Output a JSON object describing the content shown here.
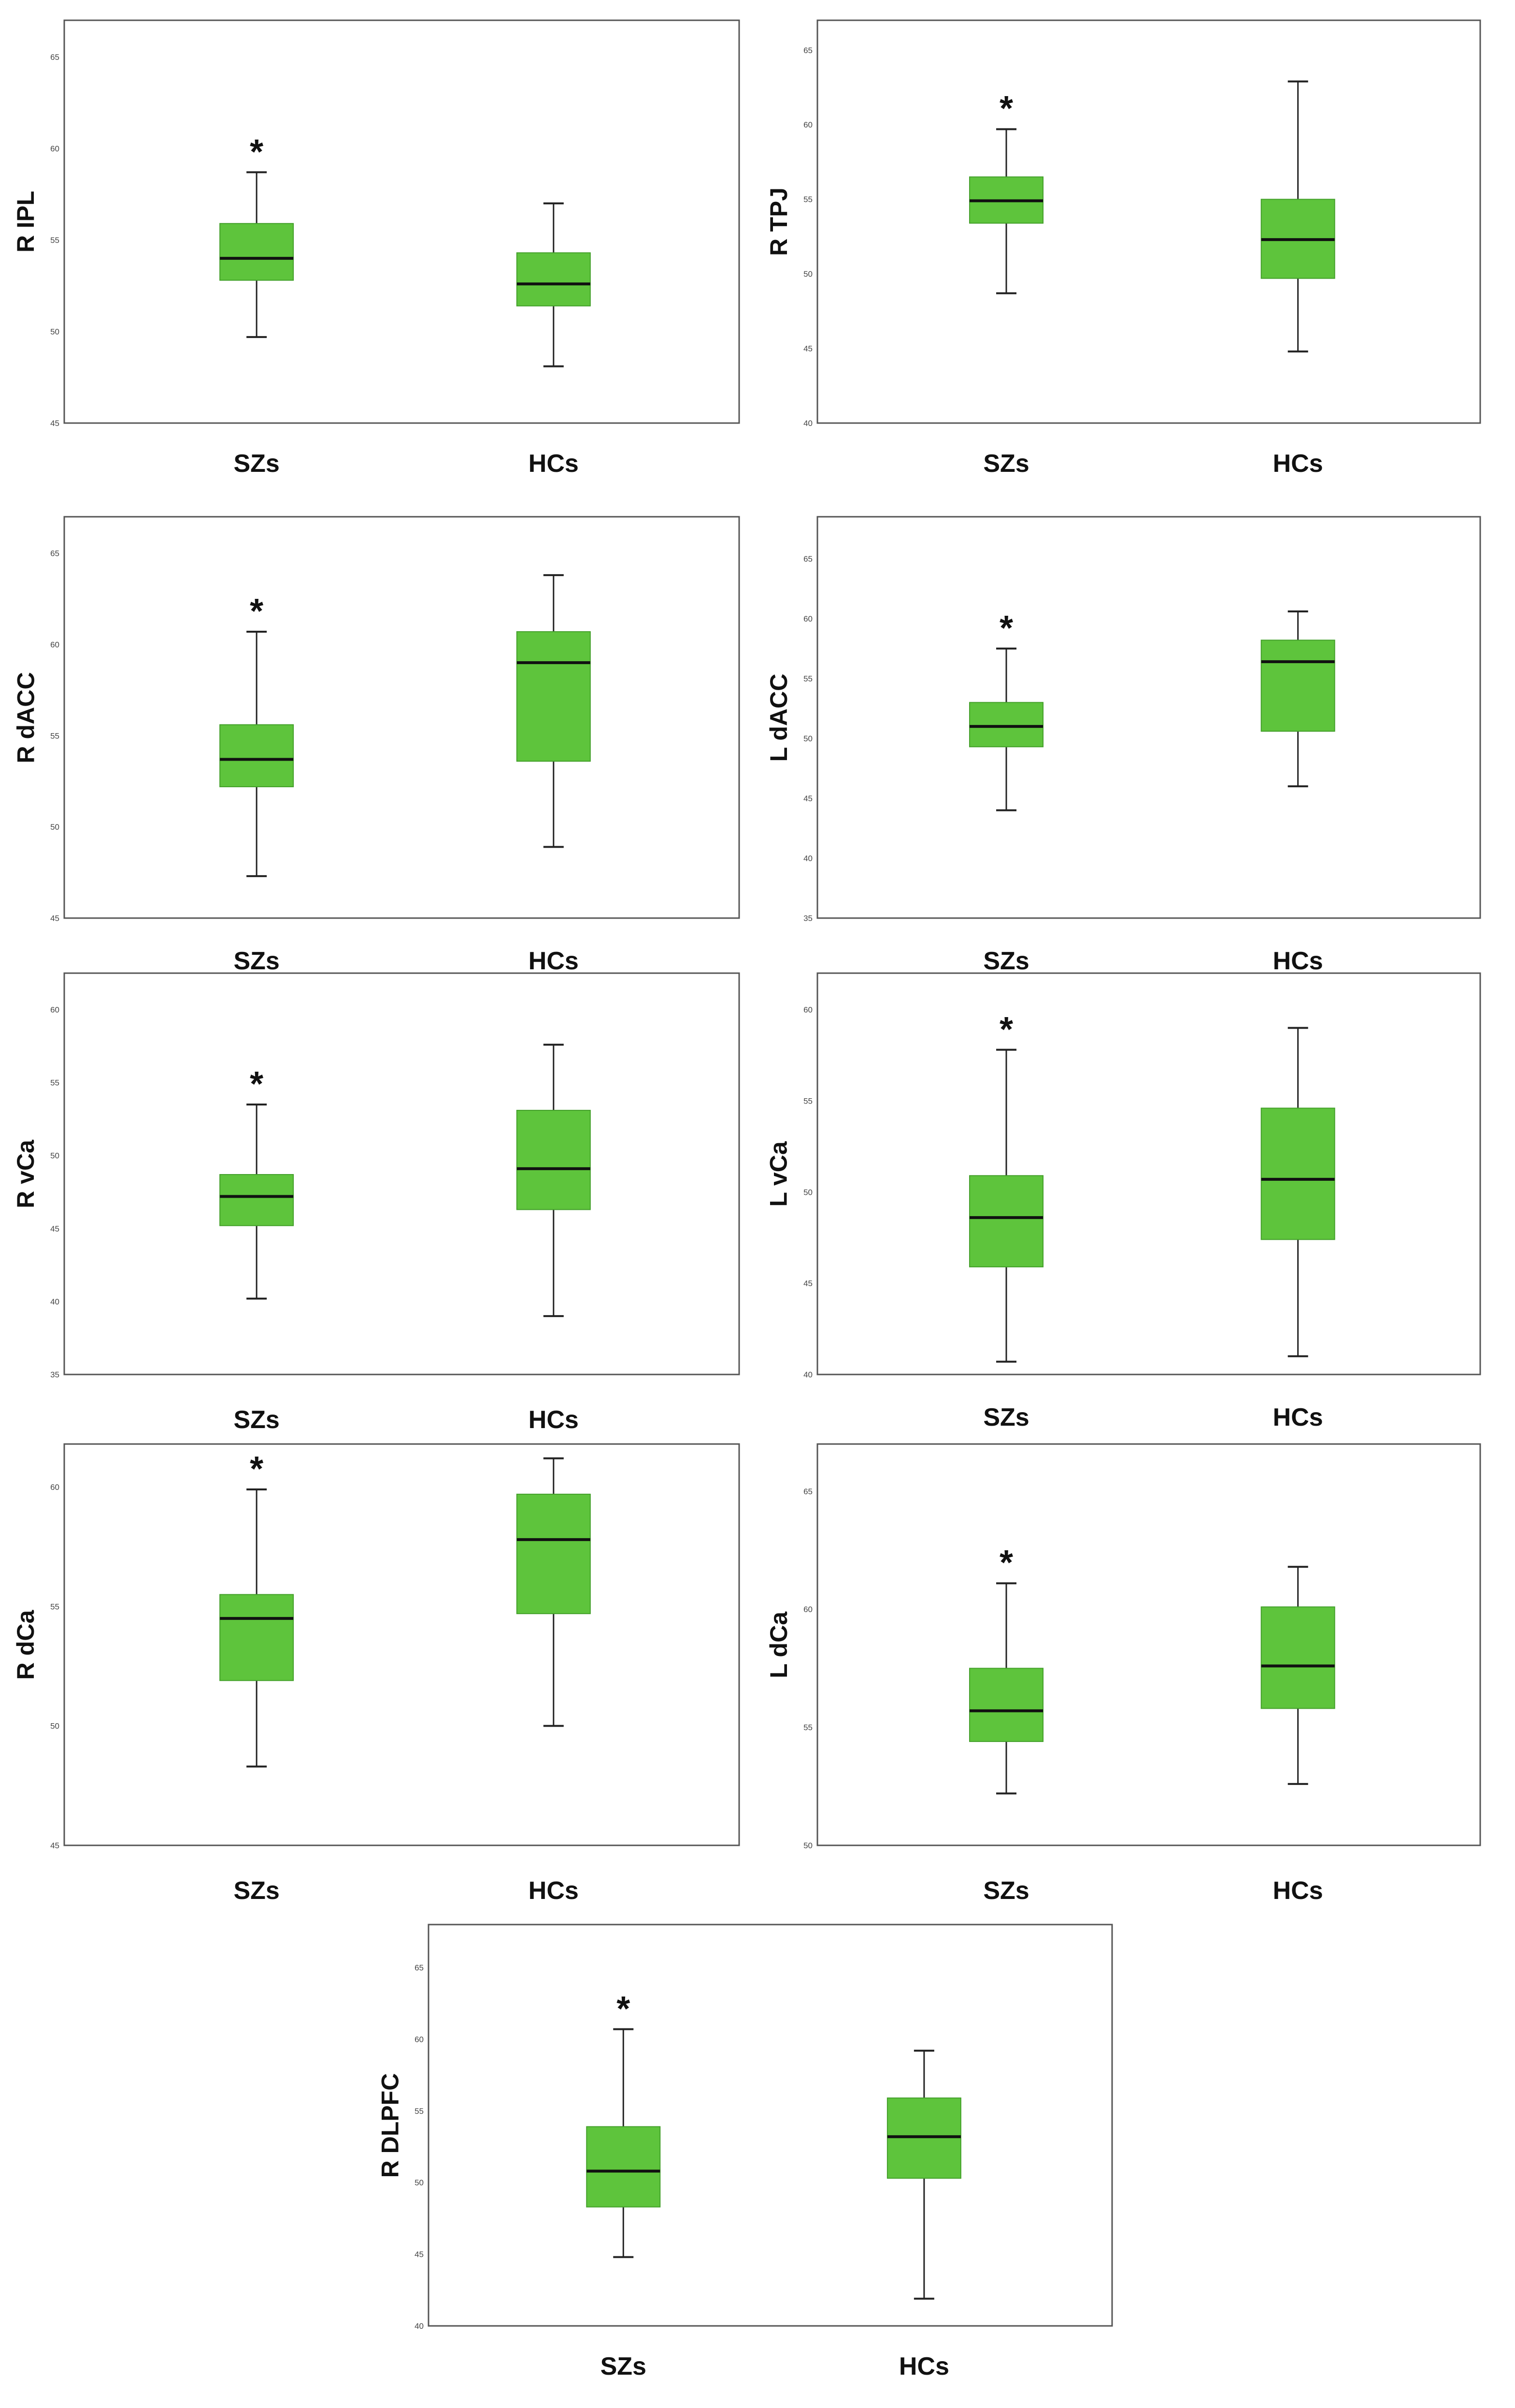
{
  "chart_data": [
    {
      "type": "boxplot",
      "title": "",
      "ylabel": "R IPL",
      "xlabel": "",
      "ylim": [
        45,
        67
      ],
      "yticks": [
        "45",
        "50",
        "55",
        "60",
        "65"
      ],
      "categories": [
        "SZs",
        "HCs"
      ],
      "significant": [
        "*",
        ""
      ],
      "boxes": [
        {
          "whisker_low": 49.7,
          "q1": 52.8,
          "median": 54.0,
          "q3": 55.9,
          "whisker_high": 58.7
        },
        {
          "whisker_low": 48.1,
          "q1": 51.4,
          "median": 52.6,
          "q3": 54.3,
          "whisker_high": 57.0
        }
      ]
    },
    {
      "type": "boxplot",
      "title": "",
      "ylabel": "R TPJ",
      "xlabel": "",
      "ylim": [
        40,
        67
      ],
      "yticks": [
        "40",
        "45",
        "50",
        "55",
        "60",
        "65"
      ],
      "categories": [
        "SZs",
        "HCs"
      ],
      "significant": [
        "*",
        ""
      ],
      "boxes": [
        {
          "whisker_low": 48.7,
          "q1": 53.4,
          "median": 54.9,
          "q3": 56.5,
          "whisker_high": 59.7
        },
        {
          "whisker_low": 44.8,
          "q1": 49.7,
          "median": 52.3,
          "q3": 55.0,
          "whisker_high": 62.9
        }
      ]
    },
    {
      "type": "boxplot",
      "title": "",
      "ylabel": "R dACC",
      "xlabel": "",
      "ylim": [
        45,
        67
      ],
      "yticks": [
        "45",
        "50",
        "55",
        "60",
        "65"
      ],
      "categories": [
        "SZs",
        "HCs"
      ],
      "significant": [
        "*",
        ""
      ],
      "boxes": [
        {
          "whisker_low": 47.3,
          "q1": 52.2,
          "median": 53.7,
          "q3": 55.6,
          "whisker_high": 60.7
        },
        {
          "whisker_low": 48.9,
          "q1": 53.6,
          "median": 59.0,
          "q3": 60.7,
          "whisker_high": 63.8
        }
      ]
    },
    {
      "type": "boxplot",
      "title": "",
      "ylabel": "L dACC",
      "xlabel": "",
      "ylim": [
        35,
        68.5
      ],
      "yticks": [
        "35",
        "40",
        "45",
        "50",
        "55",
        "60",
        "65"
      ],
      "categories": [
        "SZs",
        "HCs"
      ],
      "significant": [
        "*",
        ""
      ],
      "boxes": [
        {
          "whisker_low": 44.0,
          "q1": 49.3,
          "median": 51.0,
          "q3": 53.0,
          "whisker_high": 57.5
        },
        {
          "whisker_low": 46.0,
          "q1": 50.6,
          "median": 56.4,
          "q3": 58.2,
          "whisker_high": 60.6
        }
      ]
    },
    {
      "type": "boxplot",
      "title": "",
      "ylabel": "R vCa",
      "xlabel": "",
      "ylim": [
        35,
        62.5
      ],
      "yticks": [
        "35",
        "40",
        "45",
        "50",
        "55",
        "60"
      ],
      "categories": [
        "SZs",
        "HCs"
      ],
      "significant": [
        "*",
        ""
      ],
      "boxes": [
        {
          "whisker_low": 40.2,
          "q1": 45.2,
          "median": 47.2,
          "q3": 48.7,
          "whisker_high": 53.5
        },
        {
          "whisker_low": 39.0,
          "q1": 46.3,
          "median": 49.1,
          "q3": 53.1,
          "whisker_high": 57.6
        }
      ]
    },
    {
      "type": "boxplot",
      "title": "",
      "ylabel": "L vCa",
      "xlabel": "",
      "ylim": [
        40,
        62
      ],
      "yticks": [
        "40",
        "45",
        "50",
        "55",
        "60"
      ],
      "categories": [
        "SZs",
        "HCs"
      ],
      "significant": [
        "*",
        ""
      ],
      "boxes": [
        {
          "whisker_low": 40.7,
          "q1": 45.9,
          "median": 48.6,
          "q3": 50.9,
          "whisker_high": 57.8
        },
        {
          "whisker_low": 41.0,
          "q1": 47.4,
          "median": 50.7,
          "q3": 54.6,
          "whisker_high": 59.0
        }
      ]
    },
    {
      "type": "boxplot",
      "title": "",
      "ylabel": "R dCa",
      "xlabel": "",
      "ylim": [
        45,
        61.8
      ],
      "yticks": [
        "45",
        "50",
        "55",
        "60"
      ],
      "categories": [
        "SZs",
        "HCs"
      ],
      "significant": [
        "*",
        ""
      ],
      "boxes": [
        {
          "whisker_low": 48.3,
          "q1": 51.9,
          "median": 54.5,
          "q3": 55.5,
          "whisker_high": 59.9
        },
        {
          "whisker_low": 50.0,
          "q1": 54.7,
          "median": 57.8,
          "q3": 59.7,
          "whisker_high": 61.2
        }
      ]
    },
    {
      "type": "boxplot",
      "title": "",
      "ylabel": "L dCa",
      "xlabel": "",
      "ylim": [
        50,
        67
      ],
      "yticks": [
        "50",
        "55",
        "60",
        "65"
      ],
      "categories": [
        "SZs",
        "HCs"
      ],
      "significant": [
        "*",
        ""
      ],
      "boxes": [
        {
          "whisker_low": 52.2,
          "q1": 54.4,
          "median": 55.7,
          "q3": 57.5,
          "whisker_high": 61.1
        },
        {
          "whisker_low": 52.6,
          "q1": 55.8,
          "median": 57.6,
          "q3": 60.1,
          "whisker_high": 61.8
        }
      ]
    },
    {
      "type": "boxplot",
      "title": "",
      "ylabel": "R DLPFC",
      "xlabel": "",
      "ylim": [
        40,
        68
      ],
      "yticks": [
        "40",
        "45",
        "50",
        "55",
        "60",
        "65"
      ],
      "categories": [
        "SZs",
        "HCs"
      ],
      "significant": [
        "*",
        ""
      ],
      "boxes": [
        {
          "whisker_low": 44.8,
          "q1": 48.3,
          "median": 50.8,
          "q3": 53.9,
          "whisker_high": 60.7
        },
        {
          "whisker_low": 41.9,
          "q1": 50.3,
          "median": 53.2,
          "q3": 55.9,
          "whisker_high": 59.2
        }
      ]
    }
  ],
  "colors": {
    "box_fill": "#5ec43c",
    "box_edge": "#43a02a",
    "line": "#222222",
    "frame": "#555555"
  }
}
